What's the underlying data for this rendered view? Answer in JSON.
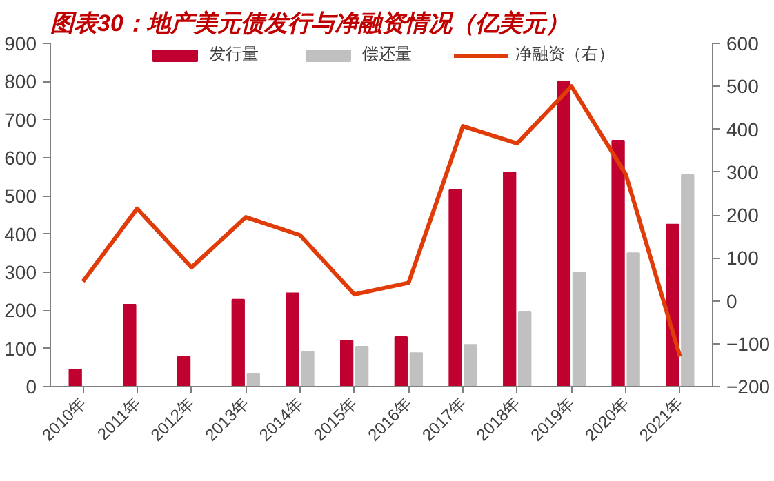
{
  "chart_data": {
    "type": "bar",
    "title": "图表30：地产美元债发行与净融资情况（亿美元）",
    "categories": [
      "2010年",
      "2011年",
      "2012年",
      "2013年",
      "2014年",
      "2015年",
      "2016年",
      "2017年",
      "2018年",
      "2019年",
      "2020年",
      "2021年"
    ],
    "series": [
      {
        "name": "发行量",
        "color": "#c0002e",
        "values": [
          45,
          215,
          78,
          228,
          245,
          120,
          130,
          517,
          562,
          800,
          645,
          425
        ]
      },
      {
        "name": "偿还量",
        "color": "#c0c0c0",
        "values": [
          0,
          0,
          0,
          33,
          92,
          105,
          88,
          110,
          195,
          300,
          350,
          555
        ]
      },
      {
        "name": "净融资（右）",
        "type": "line",
        "axis": "y2",
        "color": "#e03c0a",
        "values": [
          45,
          215,
          78,
          195,
          153,
          15,
          42,
          407,
          367,
          500,
          295,
          -130
        ]
      }
    ],
    "ylim": [
      0,
      900
    ],
    "yticks": [
      0,
      100,
      200,
      300,
      400,
      500,
      600,
      700,
      800,
      900
    ],
    "y2lim": [
      -200,
      600
    ],
    "y2ticks": [
      -200,
      -100,
      0,
      100,
      200,
      300,
      400,
      500,
      600
    ],
    "grid": false,
    "legend": "top"
  }
}
